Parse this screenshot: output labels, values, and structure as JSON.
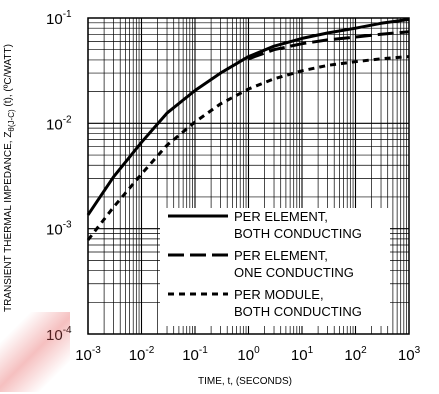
{
  "chart_data": {
    "type": "line",
    "xlabel": "TIME, t, (SECONDS)",
    "ylabel": "TRANSIENT THERMAL IMPEDANCE, Zθ(J-C) (t), (ºC/WATT)",
    "x_scale": "log",
    "y_scale": "log",
    "xlim": [
      0.001,
      1000
    ],
    "ylim": [
      0.0001,
      0.1
    ],
    "x_ticks": [
      {
        "base": "10",
        "exp": "-3"
      },
      {
        "base": "10",
        "exp": "-2"
      },
      {
        "base": "10",
        "exp": "-1"
      },
      {
        "base": "10",
        "exp": "0"
      },
      {
        "base": "10",
        "exp": "1"
      },
      {
        "base": "10",
        "exp": "2"
      },
      {
        "base": "10",
        "exp": "3"
      }
    ],
    "y_ticks": [
      {
        "base": "10",
        "exp": "-4"
      },
      {
        "base": "10",
        "exp": "-3"
      },
      {
        "base": "10",
        "exp": "-2"
      },
      {
        "base": "10",
        "exp": "-1"
      }
    ],
    "grid": true,
    "legend_position": "bottom-right",
    "series": [
      {
        "name_lines": [
          "PER ELEMENT,",
          "BOTH CONDUCTING"
        ],
        "style": "solid",
        "x": [
          0.001,
          0.003,
          0.01,
          0.03,
          0.1,
          0.3,
          1,
          3,
          10,
          30,
          100,
          300,
          1000
        ],
        "y": [
          0.00135,
          0.0031,
          0.0066,
          0.0125,
          0.0205,
          0.03,
          0.043,
          0.054,
          0.064,
          0.072,
          0.08,
          0.089,
          0.097
        ]
      },
      {
        "name_lines": [
          "PER ELEMENT,",
          "ONE CONDUCTING"
        ],
        "style": "dash",
        "x": [
          1,
          3,
          10,
          30,
          100,
          300,
          1000
        ],
        "y": [
          0.041,
          0.05,
          0.057,
          0.062,
          0.066,
          0.07,
          0.074
        ]
      },
      {
        "name_lines": [
          "PER MODULE,",
          "BOTH CONDUCTING"
        ],
        "style": "dot",
        "x": [
          0.001,
          0.003,
          0.01,
          0.03,
          0.1,
          0.3,
          1,
          3,
          10,
          30,
          100,
          300,
          1000
        ],
        "y": [
          0.00078,
          0.0016,
          0.0033,
          0.0062,
          0.0103,
          0.0153,
          0.0212,
          0.0265,
          0.0315,
          0.0355,
          0.0385,
          0.041,
          0.043
        ]
      }
    ]
  }
}
